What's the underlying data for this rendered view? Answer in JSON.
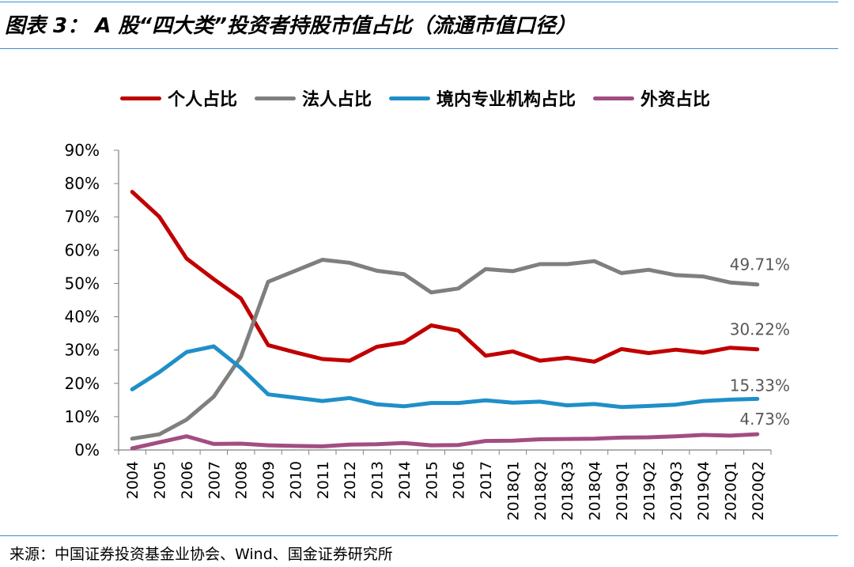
{
  "title": "图表 3： A 股“四大类”投资者持股市值占比（流通市值口径）",
  "source": "来源：中国证券投资基金业协会、Wind、国金证券研究所",
  "chart_data": {
    "type": "line",
    "title": "",
    "xlabel": "",
    "ylabel": "",
    "ylim": [
      0,
      90
    ],
    "y_ticks": [
      "0%",
      "10%",
      "20%",
      "30%",
      "40%",
      "50%",
      "60%",
      "70%",
      "80%",
      "90%"
    ],
    "grid": false,
    "legend_position": "top",
    "categories": [
      "2004",
      "2005",
      "2006",
      "2007",
      "2008",
      "2009",
      "2010",
      "2011",
      "2012",
      "2013",
      "2014",
      "2015",
      "2016",
      "2017",
      "2018Q1",
      "2018Q2",
      "2018Q3",
      "2018Q4",
      "2019Q1",
      "2019Q2",
      "2019Q3",
      "2019Q4",
      "2020Q1",
      "2020Q2"
    ],
    "series": [
      {
        "name": "个人占比",
        "color": "#c00000",
        "values": [
          77.5,
          70.0,
          57.5,
          51.3,
          45.5,
          31.5,
          29.3,
          27.3,
          26.8,
          31.0,
          32.3,
          37.4,
          35.8,
          28.3,
          29.6,
          26.8,
          27.7,
          26.5,
          30.3,
          29.1,
          30.1,
          29.2,
          30.7,
          30.22
        ],
        "end_label": "30.22%"
      },
      {
        "name": "法人占比",
        "color": "#7f7f7f",
        "values": [
          3.4,
          4.7,
          9.1,
          16.0,
          28.0,
          50.5,
          53.8,
          57.1,
          56.2,
          53.8,
          52.8,
          47.3,
          48.5,
          54.3,
          53.7,
          55.8,
          55.8,
          56.7,
          53.1,
          54.1,
          52.5,
          52.1,
          50.3,
          49.71
        ],
        "end_label": "49.71%"
      },
      {
        "name": "境内专业机构占比",
        "color": "#1f8fc8",
        "values": [
          18.2,
          23.4,
          29.4,
          31.1,
          24.6,
          16.7,
          15.7,
          14.7,
          15.6,
          13.7,
          13.1,
          14.1,
          14.1,
          14.9,
          14.2,
          14.5,
          13.4,
          13.8,
          12.9,
          13.2,
          13.6,
          14.7,
          15.1,
          15.33
        ],
        "end_label": "15.33%"
      },
      {
        "name": "外资占比",
        "color": "#a24d82",
        "values": [
          0.5,
          2.3,
          4.1,
          1.8,
          1.9,
          1.4,
          1.2,
          1.1,
          1.6,
          1.7,
          2.1,
          1.4,
          1.5,
          2.7,
          2.8,
          3.2,
          3.3,
          3.4,
          3.7,
          3.8,
          4.1,
          4.5,
          4.3,
          4.73
        ],
        "end_label": "4.73%"
      }
    ]
  }
}
